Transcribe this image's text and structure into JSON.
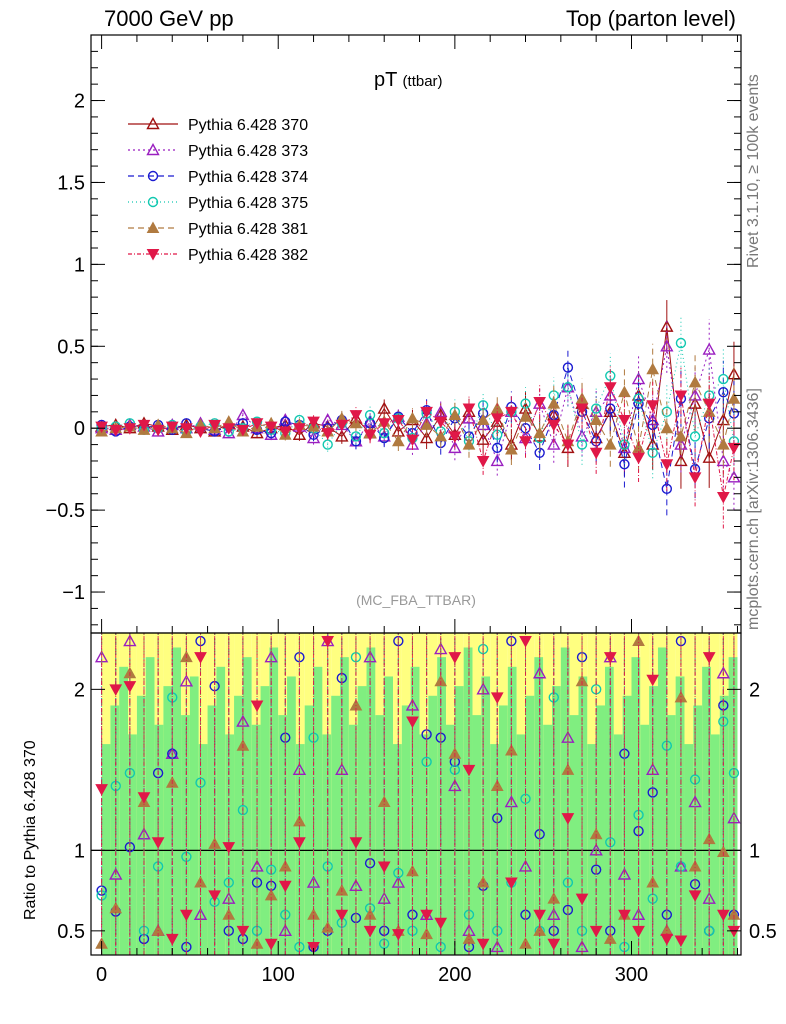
{
  "header": {
    "left": "7000 GeV pp",
    "right": "Top (parton level)"
  },
  "side_labels": {
    "rivet": "Rivet 3.1.10, ≥ 100k events",
    "mcplots": "mcplots.cern.ch [arXiv:1306.3436]"
  },
  "chart_data": [
    {
      "type": "scatter",
      "panel": "main",
      "title": "pT",
      "title_suffix": "(ttbar)",
      "watermark": "(MC_FBA_TTBAR)",
      "xlim": [
        -6,
        362
      ],
      "ylim": [
        -1.25,
        2.4
      ],
      "yticks": [
        -1,
        -0.5,
        0,
        0.5,
        1,
        1.5,
        2
      ],
      "ytick_labels": [
        "−1",
        "−0.5",
        "0",
        "0.5",
        "1",
        "1.5",
        "2"
      ],
      "legend_position": "top-left",
      "x": [
        0,
        8,
        16,
        24,
        32,
        40,
        48,
        56,
        64,
        72,
        80,
        88,
        96,
        104,
        112,
        120,
        128,
        136,
        144,
        152,
        160,
        168,
        176,
        184,
        192,
        200,
        208,
        216,
        224,
        232,
        240,
        248,
        256,
        264,
        272,
        280,
        288,
        296,
        304,
        312,
        320,
        328,
        336,
        344,
        352,
        358
      ],
      "series": [
        {
          "name": "Pythia 6.428 370",
          "color": "#a01010",
          "marker": "triangle-open",
          "dash": "",
          "values": [
            0.01,
            0.02,
            0.0,
            0.03,
            0.01,
            -0.01,
            0.02,
            0.0,
            -0.02,
            0.03,
            0.01,
            -0.03,
            0.0,
            0.02,
            -0.04,
            0.03,
            0.01,
            -0.05,
            0.06,
            -0.03,
            0.12,
            -0.02,
            0.05,
            -0.06,
            0.08,
            -0.04,
            0.1,
            -0.07,
            0.04,
            -0.1,
            0.12,
            -0.05,
            0.08,
            -0.12,
            0.15,
            -0.06,
            0.1,
            -0.15,
            0.2,
            -0.1,
            0.62,
            -0.2,
            0.15,
            -0.18,
            0.05,
            0.33
          ]
        },
        {
          "name": "Pythia 6.428 373",
          "color": "#9a1fc0",
          "marker": "triangle-open",
          "dash": "2,3",
          "values": [
            0.0,
            -0.01,
            0.02,
            0.01,
            -0.02,
            0.02,
            0.0,
            0.03,
            -0.01,
            -0.03,
            0.08,
            0.0,
            -0.04,
            0.05,
            0.01,
            -0.06,
            0.05,
            0.02,
            -0.08,
            0.04,
            -0.05,
            0.07,
            -0.1,
            0.03,
            0.1,
            -0.12,
            0.06,
            0.02,
            -0.2,
            0.1,
            -0.06,
            0.15,
            -0.1,
            0.25,
            -0.05,
            0.1,
            0.2,
            -0.12,
            0.3,
            0.05,
            0.5,
            -0.1,
            0.2,
            0.48,
            -0.2,
            -0.3
          ]
        },
        {
          "name": "Pythia 6.428 374",
          "color": "#1a1ad0",
          "marker": "circle-open",
          "dash": "6,4",
          "values": [
            0.02,
            -0.02,
            0.01,
            0.0,
            0.02,
            -0.01,
            0.03,
            0.0,
            -0.02,
            0.01,
            0.03,
            -0.01,
            -0.03,
            0.04,
            0.02,
            -0.04,
            0.0,
            0.05,
            -0.08,
            0.03,
            -0.06,
            0.07,
            -0.03,
            0.11,
            -0.09,
            0.06,
            -0.05,
            0.09,
            -0.12,
            0.13,
            0.0,
            -0.15,
            0.08,
            0.37,
            0.1,
            -0.08,
            0.12,
            -0.22,
            0.15,
            0.02,
            -0.37,
            0.18,
            -0.25,
            0.06,
            0.22,
            0.09
          ]
        },
        {
          "name": "Pythia 6.428 375",
          "color": "#10c8b0",
          "marker": "circle-open",
          "dash": "1,3",
          "values": [
            0.0,
            0.01,
            0.03,
            -0.01,
            0.0,
            0.02,
            -0.02,
            0.01,
            0.03,
            -0.02,
            0.0,
            0.04,
            -0.01,
            -0.03,
            0.05,
            0.0,
            -0.1,
            0.03,
            -0.05,
            0.08,
            -0.03,
            0.06,
            -0.06,
            0.09,
            -0.02,
            0.1,
            -0.08,
            0.14,
            -0.04,
            0.1,
            0.15,
            -0.06,
            0.2,
            0.25,
            -0.1,
            0.12,
            0.32,
            -0.1,
            0.18,
            -0.15,
            0.1,
            0.52,
            -0.05,
            0.2,
            0.3,
            -0.08
          ]
        },
        {
          "name": "Pythia 6.428 381",
          "color": "#b07a40",
          "marker": "triangle-filled",
          "dash": "6,4",
          "values": [
            -0.02,
            0.0,
            0.01,
            -0.01,
            0.02,
            0.0,
            -0.03,
            0.02,
            0.0,
            0.04,
            -0.02,
            0.01,
            0.03,
            -0.04,
            0.02,
            0.01,
            -0.02,
            0.06,
            0.03,
            -0.03,
            0.04,
            -0.08,
            0.06,
            0.02,
            -0.05,
            0.08,
            -0.1,
            0.05,
            0.12,
            -0.13,
            0.07,
            -0.03,
            0.15,
            -0.08,
            0.18,
            0.05,
            -0.1,
            0.22,
            -0.12,
            0.36,
            0.0,
            -0.05,
            0.28,
            0.1,
            -0.1,
            0.18
          ]
        },
        {
          "name": "Pythia 6.428 382",
          "color": "#e01848",
          "marker": "triangle-down-filled",
          "dash": "4,2,1,2",
          "values": [
            0.01,
            -0.01,
            0.0,
            0.02,
            -0.01,
            0.01,
            0.0,
            -0.02,
            0.02,
            0.0,
            -0.01,
            0.03,
            0.01,
            -0.02,
            0.0,
            0.04,
            -0.03,
            0.02,
            0.08,
            -0.04,
            0.03,
            0.05,
            -0.07,
            0.1,
            0.04,
            -0.05,
            0.12,
            -0.2,
            0.06,
            0.1,
            -0.08,
            0.16,
            0.02,
            -0.1,
            0.12,
            -0.15,
            0.25,
            0.05,
            -0.18,
            0.14,
            -0.22,
            0.2,
            -0.3,
            0.15,
            -0.42,
            -0.12
          ]
        }
      ]
    },
    {
      "type": "scatter",
      "panel": "ratio",
      "ylabel": "Ratio to Pythia 6.428 370",
      "xlim": [
        -6,
        362
      ],
      "ylim": [
        0.35,
        2.35
      ],
      "yticks": [
        0.5,
        1,
        2
      ],
      "ytick_labels": [
        "0.5",
        "1",
        "2"
      ],
      "xticks": [
        0,
        100,
        200,
        300
      ],
      "xtick_labels": [
        "0",
        "100",
        "200",
        "300"
      ],
      "reference_line": 1,
      "band_colors": {
        "outer": "#ffff80",
        "inner": "#80ee80"
      },
      "x": [
        0,
        8,
        16,
        24,
        32,
        40,
        48,
        56,
        64,
        72,
        80,
        88,
        96,
        104,
        112,
        120,
        128,
        136,
        144,
        152,
        160,
        168,
        176,
        184,
        192,
        200,
        208,
        216,
        224,
        232,
        240,
        248,
        256,
        264,
        272,
        280,
        288,
        296,
        304,
        312,
        320,
        328,
        336,
        344,
        352,
        358
      ],
      "series": [
        {
          "name": "Pythia 6.428 373",
          "values": [
            2.2,
            0.85,
            2.3,
            1.1,
            0.5,
            1.6,
            2.05,
            0.6,
            2.4,
            0.7,
            1.8,
            0.9,
            2.2,
            0.5,
            1.5,
            0.8,
            2.3,
            1.5,
            0.78,
            2.2,
            0.7,
            0.8,
            1.9,
            0.6,
            2.25,
            1.4,
            0.5,
            2.0,
            0.4,
            1.3,
            0.9,
            2.1,
            0.6,
            1.7,
            0.4,
            1.0,
            2.2,
            0.85,
            0.6,
            1.5,
            0.5,
            0.9,
            1.3,
            0.7,
            2.1,
            1.2
          ]
        },
        {
          "name": "Pythia 6.428 374",
          "values": [
            0.75,
            0.62,
            1.02,
            0.45,
            1.48,
            1.6,
            0.4,
            2.3,
            2.02,
            0.5,
            0.45,
            0.8,
            0.78,
            1.7,
            2.2,
            0.4,
            0.5,
            2.07,
            0.58,
            0.92,
            0.5,
            2.3,
            0.6,
            1.72,
            1.7,
            1.55,
            0.4,
            0.78,
            1.2,
            2.3,
            0.6,
            1.1,
            0.5,
            0.63,
            2.2,
            0.88,
            0.5,
            1.6,
            1.12,
            1.36,
            0.6,
            2.3,
            0.79,
            0.5,
            1.9,
            0.6
          ]
        },
        {
          "name": "Pythia 6.428 375",
          "values": [
            0.72,
            1.4,
            1.48,
            0.5,
            0.9,
            1.95,
            0.96,
            1.42,
            0.68,
            0.8,
            1.25,
            0.5,
            0.88,
            0.6,
            0.4,
            1.7,
            0.9,
            0.55,
            2.2,
            0.64,
            0.42,
            0.86,
            0.5,
            1.55,
            0.4,
            1.5,
            0.6,
            2.25,
            0.5,
            0.8,
            1.32,
            0.5,
            1.95,
            0.8,
            0.5,
            2.0,
            1.05,
            0.4,
            1.22,
            0.7,
            1.65,
            0.9,
            1.44,
            0.5,
            1.8,
            1.48
          ]
        },
        {
          "name": "Pythia 6.428 381",
          "values": [
            0.42,
            0.64,
            2.1,
            1.3,
            0.5,
            1.42,
            2.2,
            0.8,
            1.04,
            0.6,
            1.65,
            0.42,
            0.72,
            0.9,
            1.18,
            0.6,
            0.52,
            0.75,
            1.9,
            0.6,
            1.3,
            0.5,
            0.87,
            0.48,
            2.05,
            1.6,
            0.45,
            0.8,
            1.4,
            1.62,
            0.42,
            0.5,
            0.7,
            1.5,
            2.05,
            1.1,
            0.45,
            0.6,
            2.3,
            0.8,
            0.5,
            1.95,
            0.9,
            1.07,
            0.99,
            0.6
          ]
        },
        {
          "name": "Pythia 6.428 382",
          "values": [
            1.38,
            2.0,
            2.02,
            1.33,
            1.05,
            0.45,
            0.6,
            2.2,
            0.72,
            1.02,
            0.5,
            1.9,
            0.42,
            0.78,
            1.05,
            0.4,
            2.3,
            0.6,
            1.05,
            0.5,
            0.9,
            0.48,
            1.8,
            0.6,
            0.55,
            2.2,
            1.5,
            0.42,
            1.95,
            0.8,
            2.3,
            0.6,
            0.42,
            1.2,
            0.7,
            0.5,
            2.2,
            0.6,
            0.5,
            2.06,
            0.45,
            0.44,
            0.72,
            2.2,
            0.6,
            0.5
          ]
        }
      ]
    }
  ]
}
